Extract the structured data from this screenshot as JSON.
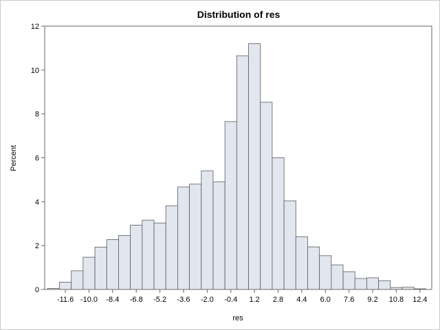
{
  "chart_data": {
    "type": "bar",
    "title": "Distribution of res",
    "xlabel": "res",
    "ylabel": "Percent",
    "bin_width": 0.8,
    "first_bin_center": -12.4,
    "bins": [
      {
        "center": -12.4,
        "percent": 0.05
      },
      {
        "center": -11.6,
        "percent": 0.33
      },
      {
        "center": -10.8,
        "percent": 0.85
      },
      {
        "center": -10.0,
        "percent": 1.47
      },
      {
        "center": -9.2,
        "percent": 1.93
      },
      {
        "center": -8.4,
        "percent": 2.27
      },
      {
        "center": -7.6,
        "percent": 2.46
      },
      {
        "center": -6.8,
        "percent": 2.93
      },
      {
        "center": -6.0,
        "percent": 3.16
      },
      {
        "center": -5.2,
        "percent": 3.03
      },
      {
        "center": -4.4,
        "percent": 3.81
      },
      {
        "center": -3.6,
        "percent": 4.67
      },
      {
        "center": -2.8,
        "percent": 4.8
      },
      {
        "center": -2.0,
        "percent": 5.4
      },
      {
        "center": -1.2,
        "percent": 4.9
      },
      {
        "center": -0.4,
        "percent": 7.65
      },
      {
        "center": 0.4,
        "percent": 10.65
      },
      {
        "center": 1.2,
        "percent": 11.2
      },
      {
        "center": 2.0,
        "percent": 8.53
      },
      {
        "center": 2.8,
        "percent": 6.0
      },
      {
        "center": 3.6,
        "percent": 4.04
      },
      {
        "center": 4.4,
        "percent": 2.4
      },
      {
        "center": 5.2,
        "percent": 1.94
      },
      {
        "center": 6.0,
        "percent": 1.54
      },
      {
        "center": 6.8,
        "percent": 1.12
      },
      {
        "center": 7.6,
        "percent": 0.81
      },
      {
        "center": 8.4,
        "percent": 0.5
      },
      {
        "center": 9.2,
        "percent": 0.53
      },
      {
        "center": 10.0,
        "percent": 0.4
      },
      {
        "center": 10.8,
        "percent": 0.09
      },
      {
        "center": 11.6,
        "percent": 0.1
      },
      {
        "center": 12.4,
        "percent": 0.03
      }
    ],
    "x_tick_values": [
      -11.6,
      -10.0,
      -8.4,
      -6.8,
      -5.2,
      -3.6,
      -2.0,
      -0.4,
      1.2,
      2.8,
      4.4,
      6.0,
      7.6,
      9.2,
      10.8,
      12.4
    ],
    "x_tick_labels": [
      "-11.6",
      "-10.0",
      "-8.4",
      "-6.8",
      "-5.2",
      "-3.6",
      "-2.0",
      "-0.4",
      "1.2",
      "2.8",
      "4.4",
      "6.0",
      "7.6",
      "9.2",
      "10.8",
      "12.4"
    ],
    "y_tick_values": [
      0,
      2,
      4,
      6,
      8,
      10,
      12
    ],
    "y_tick_labels": [
      "0",
      "2",
      "4",
      "6",
      "8",
      "10",
      "12"
    ],
    "ylim": [
      0,
      12
    ],
    "xlim": [
      -13.0,
      13.2
    ],
    "grid": false,
    "legend": "none",
    "colors": {
      "bar_fill": "#e1e6ef",
      "bar_stroke": "#5a5a5a",
      "axis": "#646464",
      "text": "#000000"
    }
  }
}
